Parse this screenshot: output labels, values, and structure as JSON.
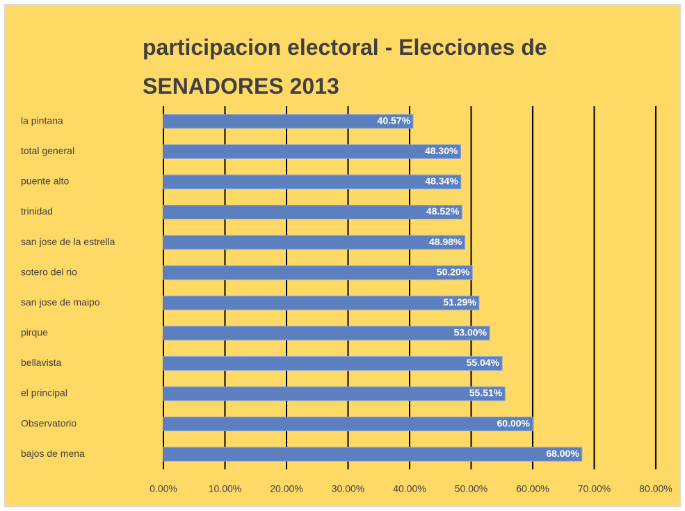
{
  "chart_data": {
    "type": "bar",
    "orientation": "horizontal",
    "title": "participacion electoral - Elecciones de SENADORES 2013",
    "categories": [
      "la pintana",
      "total general",
      "puente alto",
      "trinidad",
      "san jose de la estrella",
      "sotero del rio",
      "san jose de maipo",
      "pirque",
      "bellavista",
      "el principal",
      "Observatorio",
      "bajos de mena"
    ],
    "values": [
      40.57,
      48.3,
      48.34,
      48.52,
      48.98,
      50.2,
      51.29,
      53.0,
      55.04,
      55.51,
      60.0,
      68.0
    ],
    "value_labels": [
      "40.57%",
      "48.30%",
      "48.34%",
      "48.52%",
      "48.98%",
      "50.20%",
      "51.29%",
      "53.00%",
      "55.04%",
      "55.51%",
      "60.00%",
      "68.00%"
    ],
    "color": "#5b7fbf",
    "xlim": [
      0,
      80
    ],
    "xticks": [
      {
        "value": 0,
        "label": "0.00%"
      },
      {
        "value": 10,
        "label": "10.00%"
      },
      {
        "value": 20,
        "label": "20.00%"
      },
      {
        "value": 30,
        "label": "30.00%"
      },
      {
        "value": 40,
        "label": "40.00%"
      },
      {
        "value": 50,
        "label": "50.00%"
      },
      {
        "value": 60,
        "label": "60.00%"
      },
      {
        "value": 70,
        "label": "70.00%"
      },
      {
        "value": 80,
        "label": "80.00%"
      }
    ],
    "grid": true
  }
}
